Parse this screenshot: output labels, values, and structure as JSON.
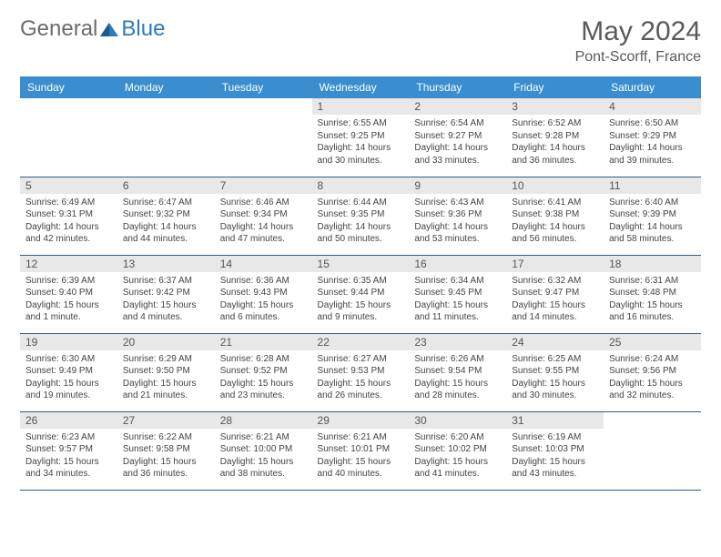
{
  "logo": {
    "text1": "General",
    "text2": "Blue"
  },
  "title": "May 2024",
  "location": "Pont-Scorff, France",
  "colors": {
    "header_bg": "#3a8dce",
    "header_text": "#ffffff",
    "daynum_bg": "#e8e8e8",
    "cell_border": "#2f5e8a",
    "body_text": "#444444",
    "logo_gray": "#6b6b6b",
    "logo_blue": "#2b7bbf"
  },
  "day_headers": [
    "Sunday",
    "Monday",
    "Tuesday",
    "Wednesday",
    "Thursday",
    "Friday",
    "Saturday"
  ],
  "weeks": [
    [
      null,
      null,
      null,
      {
        "n": "1",
        "sr": "Sunrise: 6:55 AM",
        "ss": "Sunset: 9:25 PM",
        "dl": "Daylight: 14 hours and 30 minutes."
      },
      {
        "n": "2",
        "sr": "Sunrise: 6:54 AM",
        "ss": "Sunset: 9:27 PM",
        "dl": "Daylight: 14 hours and 33 minutes."
      },
      {
        "n": "3",
        "sr": "Sunrise: 6:52 AM",
        "ss": "Sunset: 9:28 PM",
        "dl": "Daylight: 14 hours and 36 minutes."
      },
      {
        "n": "4",
        "sr": "Sunrise: 6:50 AM",
        "ss": "Sunset: 9:29 PM",
        "dl": "Daylight: 14 hours and 39 minutes."
      }
    ],
    [
      {
        "n": "5",
        "sr": "Sunrise: 6:49 AM",
        "ss": "Sunset: 9:31 PM",
        "dl": "Daylight: 14 hours and 42 minutes."
      },
      {
        "n": "6",
        "sr": "Sunrise: 6:47 AM",
        "ss": "Sunset: 9:32 PM",
        "dl": "Daylight: 14 hours and 44 minutes."
      },
      {
        "n": "7",
        "sr": "Sunrise: 6:46 AM",
        "ss": "Sunset: 9:34 PM",
        "dl": "Daylight: 14 hours and 47 minutes."
      },
      {
        "n": "8",
        "sr": "Sunrise: 6:44 AM",
        "ss": "Sunset: 9:35 PM",
        "dl": "Daylight: 14 hours and 50 minutes."
      },
      {
        "n": "9",
        "sr": "Sunrise: 6:43 AM",
        "ss": "Sunset: 9:36 PM",
        "dl": "Daylight: 14 hours and 53 minutes."
      },
      {
        "n": "10",
        "sr": "Sunrise: 6:41 AM",
        "ss": "Sunset: 9:38 PM",
        "dl": "Daylight: 14 hours and 56 minutes."
      },
      {
        "n": "11",
        "sr": "Sunrise: 6:40 AM",
        "ss": "Sunset: 9:39 PM",
        "dl": "Daylight: 14 hours and 58 minutes."
      }
    ],
    [
      {
        "n": "12",
        "sr": "Sunrise: 6:39 AM",
        "ss": "Sunset: 9:40 PM",
        "dl": "Daylight: 15 hours and 1 minute."
      },
      {
        "n": "13",
        "sr": "Sunrise: 6:37 AM",
        "ss": "Sunset: 9:42 PM",
        "dl": "Daylight: 15 hours and 4 minutes."
      },
      {
        "n": "14",
        "sr": "Sunrise: 6:36 AM",
        "ss": "Sunset: 9:43 PM",
        "dl": "Daylight: 15 hours and 6 minutes."
      },
      {
        "n": "15",
        "sr": "Sunrise: 6:35 AM",
        "ss": "Sunset: 9:44 PM",
        "dl": "Daylight: 15 hours and 9 minutes."
      },
      {
        "n": "16",
        "sr": "Sunrise: 6:34 AM",
        "ss": "Sunset: 9:45 PM",
        "dl": "Daylight: 15 hours and 11 minutes."
      },
      {
        "n": "17",
        "sr": "Sunrise: 6:32 AM",
        "ss": "Sunset: 9:47 PM",
        "dl": "Daylight: 15 hours and 14 minutes."
      },
      {
        "n": "18",
        "sr": "Sunrise: 6:31 AM",
        "ss": "Sunset: 9:48 PM",
        "dl": "Daylight: 15 hours and 16 minutes."
      }
    ],
    [
      {
        "n": "19",
        "sr": "Sunrise: 6:30 AM",
        "ss": "Sunset: 9:49 PM",
        "dl": "Daylight: 15 hours and 19 minutes."
      },
      {
        "n": "20",
        "sr": "Sunrise: 6:29 AM",
        "ss": "Sunset: 9:50 PM",
        "dl": "Daylight: 15 hours and 21 minutes."
      },
      {
        "n": "21",
        "sr": "Sunrise: 6:28 AM",
        "ss": "Sunset: 9:52 PM",
        "dl": "Daylight: 15 hours and 23 minutes."
      },
      {
        "n": "22",
        "sr": "Sunrise: 6:27 AM",
        "ss": "Sunset: 9:53 PM",
        "dl": "Daylight: 15 hours and 26 minutes."
      },
      {
        "n": "23",
        "sr": "Sunrise: 6:26 AM",
        "ss": "Sunset: 9:54 PM",
        "dl": "Daylight: 15 hours and 28 minutes."
      },
      {
        "n": "24",
        "sr": "Sunrise: 6:25 AM",
        "ss": "Sunset: 9:55 PM",
        "dl": "Daylight: 15 hours and 30 minutes."
      },
      {
        "n": "25",
        "sr": "Sunrise: 6:24 AM",
        "ss": "Sunset: 9:56 PM",
        "dl": "Daylight: 15 hours and 32 minutes."
      }
    ],
    [
      {
        "n": "26",
        "sr": "Sunrise: 6:23 AM",
        "ss": "Sunset: 9:57 PM",
        "dl": "Daylight: 15 hours and 34 minutes."
      },
      {
        "n": "27",
        "sr": "Sunrise: 6:22 AM",
        "ss": "Sunset: 9:58 PM",
        "dl": "Daylight: 15 hours and 36 minutes."
      },
      {
        "n": "28",
        "sr": "Sunrise: 6:21 AM",
        "ss": "Sunset: 10:00 PM",
        "dl": "Daylight: 15 hours and 38 minutes."
      },
      {
        "n": "29",
        "sr": "Sunrise: 6:21 AM",
        "ss": "Sunset: 10:01 PM",
        "dl": "Daylight: 15 hours and 40 minutes."
      },
      {
        "n": "30",
        "sr": "Sunrise: 6:20 AM",
        "ss": "Sunset: 10:02 PM",
        "dl": "Daylight: 15 hours and 41 minutes."
      },
      {
        "n": "31",
        "sr": "Sunrise: 6:19 AM",
        "ss": "Sunset: 10:03 PM",
        "dl": "Daylight: 15 hours and 43 minutes."
      },
      null
    ]
  ]
}
